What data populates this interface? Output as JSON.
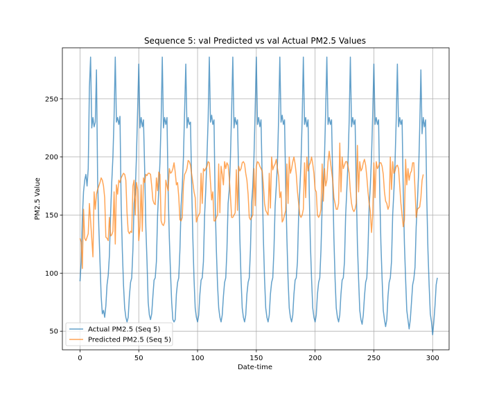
{
  "chart_data": {
    "type": "line",
    "title": "Sequence 5: val Predicted vs val Actual PM2.5 Values",
    "xlabel": "Date-time",
    "ylabel": "PM2.5 Value",
    "xlim": [
      -15,
      314
    ],
    "ylim": [
      34,
      294
    ],
    "xticks": [
      0,
      50,
      100,
      150,
      200,
      250,
      300
    ],
    "yticks": [
      50,
      100,
      150,
      200,
      250
    ],
    "grid": true,
    "legend_position": "lower-left",
    "series": [
      {
        "name": "Actual PM2.5 (Seq 5)",
        "color": "#1f77b4",
        "values": [
          93,
          110,
          148,
          170,
          180,
          185,
          175,
          190,
          260,
          286,
          225,
          234,
          226,
          230,
          275,
          180,
          140,
          110,
          80,
          65,
          68,
          62,
          72,
          90,
          98,
          115,
          150,
          178,
          200,
          235,
          286,
          230,
          234,
          228,
          235,
          160,
          120,
          90,
          70,
          62,
          58,
          62,
          80,
          92,
          96,
          120,
          160,
          170,
          200,
          240,
          280,
          225,
          234,
          226,
          232,
          190,
          140,
          110,
          75,
          64,
          60,
          65,
          80,
          94,
          96,
          110,
          150,
          172,
          195,
          230,
          286,
          225,
          234,
          228,
          234,
          170,
          130,
          100,
          75,
          60,
          58,
          60,
          82,
          92,
          96,
          120,
          158,
          175,
          200,
          240,
          280,
          225,
          234,
          228,
          230,
          175,
          130,
          95,
          70,
          62,
          58,
          64,
          82,
          94,
          96,
          110,
          150,
          172,
          200,
          232,
          286,
          230,
          236,
          228,
          232,
          160,
          120,
          90,
          70,
          62,
          58,
          64,
          80,
          92,
          96,
          120,
          160,
          172,
          200,
          240,
          286,
          225,
          234,
          228,
          232,
          180,
          130,
          95,
          70,
          62,
          58,
          64,
          82,
          92,
          96,
          120,
          160,
          175,
          200,
          240,
          286,
          228,
          234,
          226,
          232,
          180,
          130,
          95,
          70,
          62,
          58,
          64,
          82,
          92,
          96,
          120,
          158,
          175,
          195,
          235,
          286,
          230,
          236,
          228,
          232,
          175,
          130,
          95,
          70,
          62,
          58,
          64,
          82,
          94,
          96,
          110,
          150,
          172,
          195,
          232,
          286,
          228,
          234,
          226,
          232,
          170,
          125,
          95,
          70,
          62,
          58,
          64,
          82,
          92,
          96,
          120,
          158,
          175,
          200,
          240,
          286,
          228,
          234,
          228,
          232,
          180,
          130,
          95,
          70,
          62,
          58,
          64,
          82,
          94,
          96,
          110,
          150,
          172,
          195,
          232,
          286,
          226,
          234,
          228,
          232,
          175,
          125,
          95,
          68,
          60,
          56,
          64,
          80,
          92,
          96,
          120,
          158,
          175,
          200,
          236,
          280,
          228,
          234,
          228,
          232,
          170,
          125,
          95,
          68,
          60,
          54,
          60,
          80,
          92,
          96,
          110,
          150,
          170,
          195,
          232,
          280,
          226,
          234,
          228,
          232,
          170,
          125,
          95,
          68,
          60,
          52,
          60,
          75,
          90,
          95,
          105,
          140,
          160,
          185,
          225,
          275,
          220,
          234,
          226,
          232,
          165,
          120,
          90,
          65,
          58,
          47,
          58,
          72,
          90,
          96
        ]
      },
      {
        "name": "Predicted PM2.5 (Seq 5)",
        "color": "#ff7f0e",
        "values": [
          130,
          127,
          104,
          155,
          130,
          128,
          131,
          134,
          160,
          145,
          130,
          114,
          170,
          155,
          168,
          172,
          175,
          178,
          182,
          180,
          175,
          165,
          131,
          130,
          128,
          148,
          132,
          133,
          136,
          170,
          125,
          176,
          168,
          180,
          178,
          182,
          184,
          186,
          185,
          180,
          152,
          136,
          134,
          136,
          135,
          175,
          180,
          150,
          178,
          172,
          128,
          140,
          176,
          136,
          182,
          178,
          185,
          184,
          186,
          186,
          185,
          175,
          163,
          160,
          159,
          182,
          171,
          187,
          185,
          145,
          142,
          141,
          144,
          180,
          175,
          171,
          190,
          186,
          187,
          190,
          195,
          187,
          176,
          178,
          166,
          146,
          145,
          148,
          176,
          185,
          187,
          190,
          197,
          196,
          193,
          185,
          178,
          170,
          165,
          144,
          148,
          150,
          152,
          186,
          160,
          190,
          188,
          190,
          192,
          196,
          195,
          178,
          163,
          170,
          145,
          145,
          148,
          150,
          194,
          152,
          192,
          185,
          176,
          196,
          190,
          195,
          193,
          182,
          166,
          148,
          148,
          150,
          152,
          189,
          154,
          192,
          188,
          190,
          195,
          196,
          194,
          186,
          180,
          168,
          148,
          146,
          148,
          150,
          190,
          158,
          192,
          196,
          195,
          192,
          190,
          188,
          176,
          160,
          154,
          152,
          150,
          186,
          156,
          200,
          189,
          192,
          194,
          198,
          190,
          183,
          165,
          170,
          144,
          146,
          150,
          154,
          194,
          160,
          200,
          186,
          190,
          196,
          200,
          194,
          185,
          170,
          160,
          150,
          148,
          150,
          155,
          195,
          165,
          200,
          188,
          193,
          195,
          200,
          194,
          186,
          172,
          170,
          150,
          148,
          150,
          155,
          194,
          162,
          190,
          175,
          180,
          196,
          205,
          196,
          188,
          180,
          165,
          160,
          155,
          155,
          160,
          212,
          170,
          200,
          190,
          193,
          196,
          196,
          192,
          186,
          170,
          160,
          155,
          153,
          155,
          160,
          210,
          170,
          196,
          188,
          190,
          195,
          198,
          193,
          183,
          170,
          160,
          153,
          135,
          150,
          195,
          165,
          196,
          190,
          192,
          195,
          195,
          192,
          185,
          170,
          162,
          160,
          155,
          158,
          200,
          172,
          196,
          186,
          188,
          192,
          193,
          190,
          175,
          160,
          150,
          140,
          146,
          198,
          176,
          190,
          180,
          186,
          188,
          195,
          195,
          172,
          148,
          155,
          156,
          157,
          165,
          180,
          185
        ]
      }
    ]
  }
}
